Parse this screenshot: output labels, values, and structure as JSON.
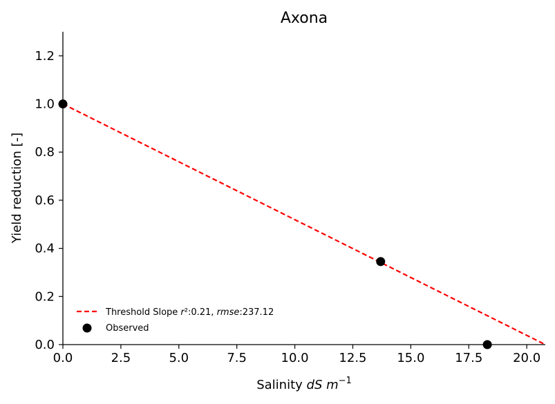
{
  "chart_data": {
    "type": "scatter",
    "title": "Axona",
    "xlabel": {
      "prefix": "Salinity ",
      "var": "dS m",
      "exp": "−1"
    },
    "ylabel": "Yield reduction [-]",
    "xlim": [
      0,
      20.8
    ],
    "ylim": [
      0,
      1.3
    ],
    "x_ticks": [
      0,
      2.5,
      5,
      7.5,
      10,
      12.5,
      15,
      17.5,
      20
    ],
    "x_tick_labels": [
      "0.0",
      "2.5",
      "5.0",
      "7.5",
      "10.0",
      "12.5",
      "15.0",
      "17.5",
      "20.0"
    ],
    "y_ticks": [
      0,
      0.2,
      0.4,
      0.6,
      0.8,
      1.0,
      1.2
    ],
    "y_tick_labels": [
      "0.0",
      "0.2",
      "0.4",
      "0.6",
      "0.8",
      "1.0",
      "1.2"
    ],
    "grid": false,
    "legend_position": "lower-left",
    "series": [
      {
        "kind": "line",
        "style": "dashed",
        "color": "#ff0000",
        "x": [
          0,
          20.8
        ],
        "y": [
          1.0,
          0.0
        ],
        "legend": {
          "prefix": "Threshold Slope ",
          "r": "r",
          "r_rest": "²:0.21, ",
          "rmse": "rmse",
          "rmse_rest": ":237.12"
        }
      },
      {
        "name": "Observed",
        "kind": "scatter",
        "color": "#000000",
        "x": [
          0.0,
          13.7,
          18.3
        ],
        "y": [
          1.0,
          0.345,
          0.0
        ]
      }
    ]
  }
}
